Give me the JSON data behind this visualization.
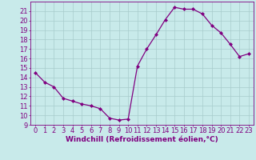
{
  "x": [
    0,
    1,
    2,
    3,
    4,
    5,
    6,
    7,
    8,
    9,
    10,
    11,
    12,
    13,
    14,
    15,
    16,
    17,
    18,
    19,
    20,
    21,
    22,
    23
  ],
  "y": [
    14.5,
    13.5,
    13.0,
    11.8,
    11.5,
    11.2,
    11.0,
    10.7,
    9.7,
    9.5,
    9.6,
    15.2,
    17.0,
    18.5,
    20.1,
    21.4,
    21.2,
    21.2,
    20.7,
    19.5,
    18.7,
    17.5,
    16.2,
    16.5
  ],
  "line_color": "#800080",
  "marker": "D",
  "markersize": 2.0,
  "linewidth": 0.9,
  "bg_color": "#c8eaea",
  "grid_color": "#a8cccc",
  "xlabel": "Windchill (Refroidissement éolien,°C)",
  "ylabel": "",
  "xlim": [
    -0.5,
    23.5
  ],
  "ylim": [
    9,
    22
  ],
  "yticks": [
    9,
    10,
    11,
    12,
    13,
    14,
    15,
    16,
    17,
    18,
    19,
    20,
    21
  ],
  "xticks": [
    0,
    1,
    2,
    3,
    4,
    5,
    6,
    7,
    8,
    9,
    10,
    11,
    12,
    13,
    14,
    15,
    16,
    17,
    18,
    19,
    20,
    21,
    22,
    23
  ],
  "tick_color": "#800080",
  "label_color": "#800080",
  "xlabel_fontsize": 6.5,
  "tick_fontsize": 6.0
}
